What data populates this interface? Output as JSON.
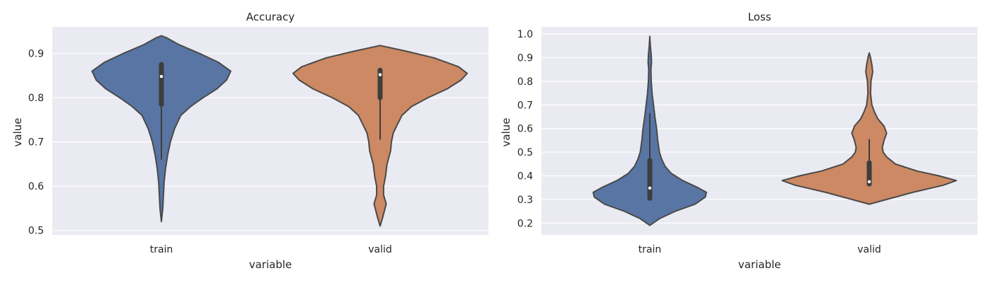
{
  "chart_data": [
    {
      "type": "violin",
      "title": "Accuracy",
      "xlabel": "variable",
      "ylabel": "value",
      "ylim": [
        0.49,
        0.96
      ],
      "yticks": [
        0.5,
        0.6,
        0.7,
        0.8,
        0.9
      ],
      "ytick_labels": [
        "0.5",
        "0.6",
        "0.7",
        "0.8",
        "0.9"
      ],
      "grid": true,
      "background": "#eaeaf2",
      "categories": [
        "train",
        "valid"
      ],
      "series": [
        {
          "category": "train",
          "color": "#5875a4",
          "min": 0.52,
          "max": 0.94,
          "q1": 0.785,
          "median": 0.848,
          "q3": 0.875,
          "whisker_low": 0.66,
          "whisker_high": 0.875,
          "density": [
            [
              0.52,
              0.0
            ],
            [
              0.55,
              0.02
            ],
            [
              0.58,
              0.03
            ],
            [
              0.61,
              0.04
            ],
            [
              0.64,
              0.06
            ],
            [
              0.67,
              0.09
            ],
            [
              0.7,
              0.13
            ],
            [
              0.73,
              0.19
            ],
            [
              0.76,
              0.28
            ],
            [
              0.78,
              0.42
            ],
            [
              0.8,
              0.6
            ],
            [
              0.82,
              0.8
            ],
            [
              0.84,
              0.94
            ],
            [
              0.86,
              1.0
            ],
            [
              0.88,
              0.82
            ],
            [
              0.9,
              0.55
            ],
            [
              0.92,
              0.25
            ],
            [
              0.935,
              0.08
            ],
            [
              0.94,
              0.0
            ]
          ]
        },
        {
          "category": "valid",
          "color": "#cc8963",
          "min": 0.51,
          "max": 0.918,
          "q1": 0.8,
          "median": 0.852,
          "q3": 0.862,
          "whisker_low": 0.705,
          "whisker_high": 0.862,
          "density": [
            [
              0.51,
              0.0
            ],
            [
              0.53,
              0.03
            ],
            [
              0.56,
              0.07
            ],
            [
              0.58,
              0.04
            ],
            [
              0.6,
              0.04
            ],
            [
              0.62,
              0.06
            ],
            [
              0.65,
              0.08
            ],
            [
              0.68,
              0.12
            ],
            [
              0.7,
              0.13
            ],
            [
              0.72,
              0.15
            ],
            [
              0.74,
              0.2
            ],
            [
              0.76,
              0.25
            ],
            [
              0.78,
              0.36
            ],
            [
              0.8,
              0.55
            ],
            [
              0.82,
              0.77
            ],
            [
              0.84,
              0.93
            ],
            [
              0.855,
              1.0
            ],
            [
              0.87,
              0.9
            ],
            [
              0.89,
              0.62
            ],
            [
              0.905,
              0.3
            ],
            [
              0.918,
              0.0
            ]
          ]
        }
      ]
    },
    {
      "type": "violin",
      "title": "Loss",
      "xlabel": "variable",
      "ylabel": "value",
      "ylim": [
        0.15,
        1.03
      ],
      "yticks": [
        0.2,
        0.3,
        0.4,
        0.5,
        0.6,
        0.7,
        0.8,
        0.9,
        1.0
      ],
      "ytick_labels": [
        "0.2",
        "0.3",
        "0.4",
        "0.5",
        "0.6",
        "0.7",
        "0.8",
        "0.9",
        "1.0"
      ],
      "grid": true,
      "background": "#eaeaf2",
      "categories": [
        "train",
        "valid"
      ],
      "series": [
        {
          "category": "train",
          "color": "#5875a4",
          "min": 0.19,
          "max": 0.99,
          "q1": 0.305,
          "median": 0.348,
          "q3": 0.465,
          "whisker_low": 0.305,
          "whisker_high": 0.665,
          "density": [
            [
              0.19,
              0.0
            ],
            [
              0.22,
              0.18
            ],
            [
              0.25,
              0.45
            ],
            [
              0.28,
              0.8
            ],
            [
              0.31,
              0.98
            ],
            [
              0.33,
              1.0
            ],
            [
              0.35,
              0.85
            ],
            [
              0.38,
              0.58
            ],
            [
              0.41,
              0.38
            ],
            [
              0.44,
              0.27
            ],
            [
              0.47,
              0.21
            ],
            [
              0.5,
              0.17
            ],
            [
              0.55,
              0.14
            ],
            [
              0.6,
              0.12
            ],
            [
              0.65,
              0.09
            ],
            [
              0.7,
              0.065
            ],
            [
              0.75,
              0.04
            ],
            [
              0.8,
              0.025
            ],
            [
              0.85,
              0.02
            ],
            [
              0.88,
              0.03
            ],
            [
              0.91,
              0.025
            ],
            [
              0.95,
              0.01
            ],
            [
              0.99,
              0.0
            ]
          ]
        },
        {
          "category": "valid",
          "color": "#cc8963",
          "min": 0.28,
          "max": 0.92,
          "q1": 0.365,
          "median": 0.375,
          "q3": 0.455,
          "whisker_low": 0.365,
          "whisker_high": 0.555,
          "density": [
            [
              0.28,
              0.0
            ],
            [
              0.3,
              0.2
            ],
            [
              0.33,
              0.5
            ],
            [
              0.36,
              0.85
            ],
            [
              0.38,
              1.0
            ],
            [
              0.4,
              0.8
            ],
            [
              0.42,
              0.55
            ],
            [
              0.45,
              0.3
            ],
            [
              0.48,
              0.2
            ],
            [
              0.5,
              0.16
            ],
            [
              0.52,
              0.15
            ],
            [
              0.55,
              0.17
            ],
            [
              0.58,
              0.2
            ],
            [
              0.61,
              0.17
            ],
            [
              0.64,
              0.1
            ],
            [
              0.67,
              0.06
            ],
            [
              0.7,
              0.03
            ],
            [
              0.75,
              0.015
            ],
            [
              0.8,
              0.02
            ],
            [
              0.84,
              0.04
            ],
            [
              0.87,
              0.03
            ],
            [
              0.9,
              0.015
            ],
            [
              0.92,
              0.0
            ]
          ]
        }
      ]
    }
  ]
}
